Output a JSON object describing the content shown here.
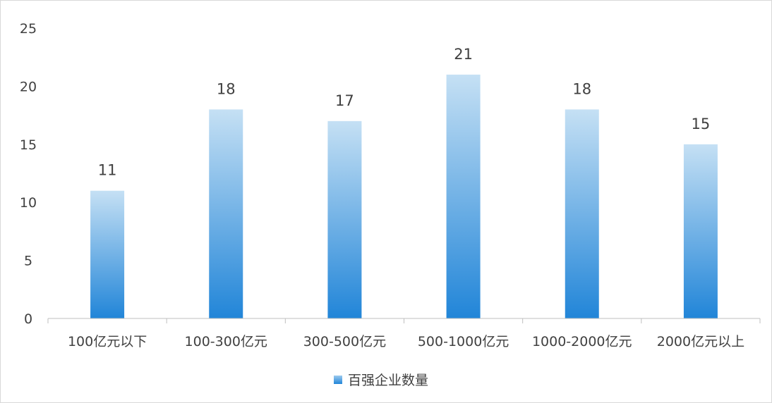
{
  "chart_data": {
    "type": "bar",
    "categories": [
      "100亿元以下",
      "100-300亿元",
      "300-500亿元",
      "500-1000亿元",
      "1000-2000亿元",
      "2000亿元以上"
    ],
    "series": [
      {
        "name": "百强企业数量",
        "values": [
          11,
          18,
          17,
          21,
          18,
          15
        ]
      }
    ],
    "ylim": [
      0,
      25
    ],
    "yticks": [
      0,
      5,
      10,
      15,
      20,
      25
    ],
    "grid": false,
    "legend": "bottom-center",
    "data_labels": true,
    "bar_color_top": "#c5e0f4",
    "bar_color_bottom": "#2185d8"
  }
}
